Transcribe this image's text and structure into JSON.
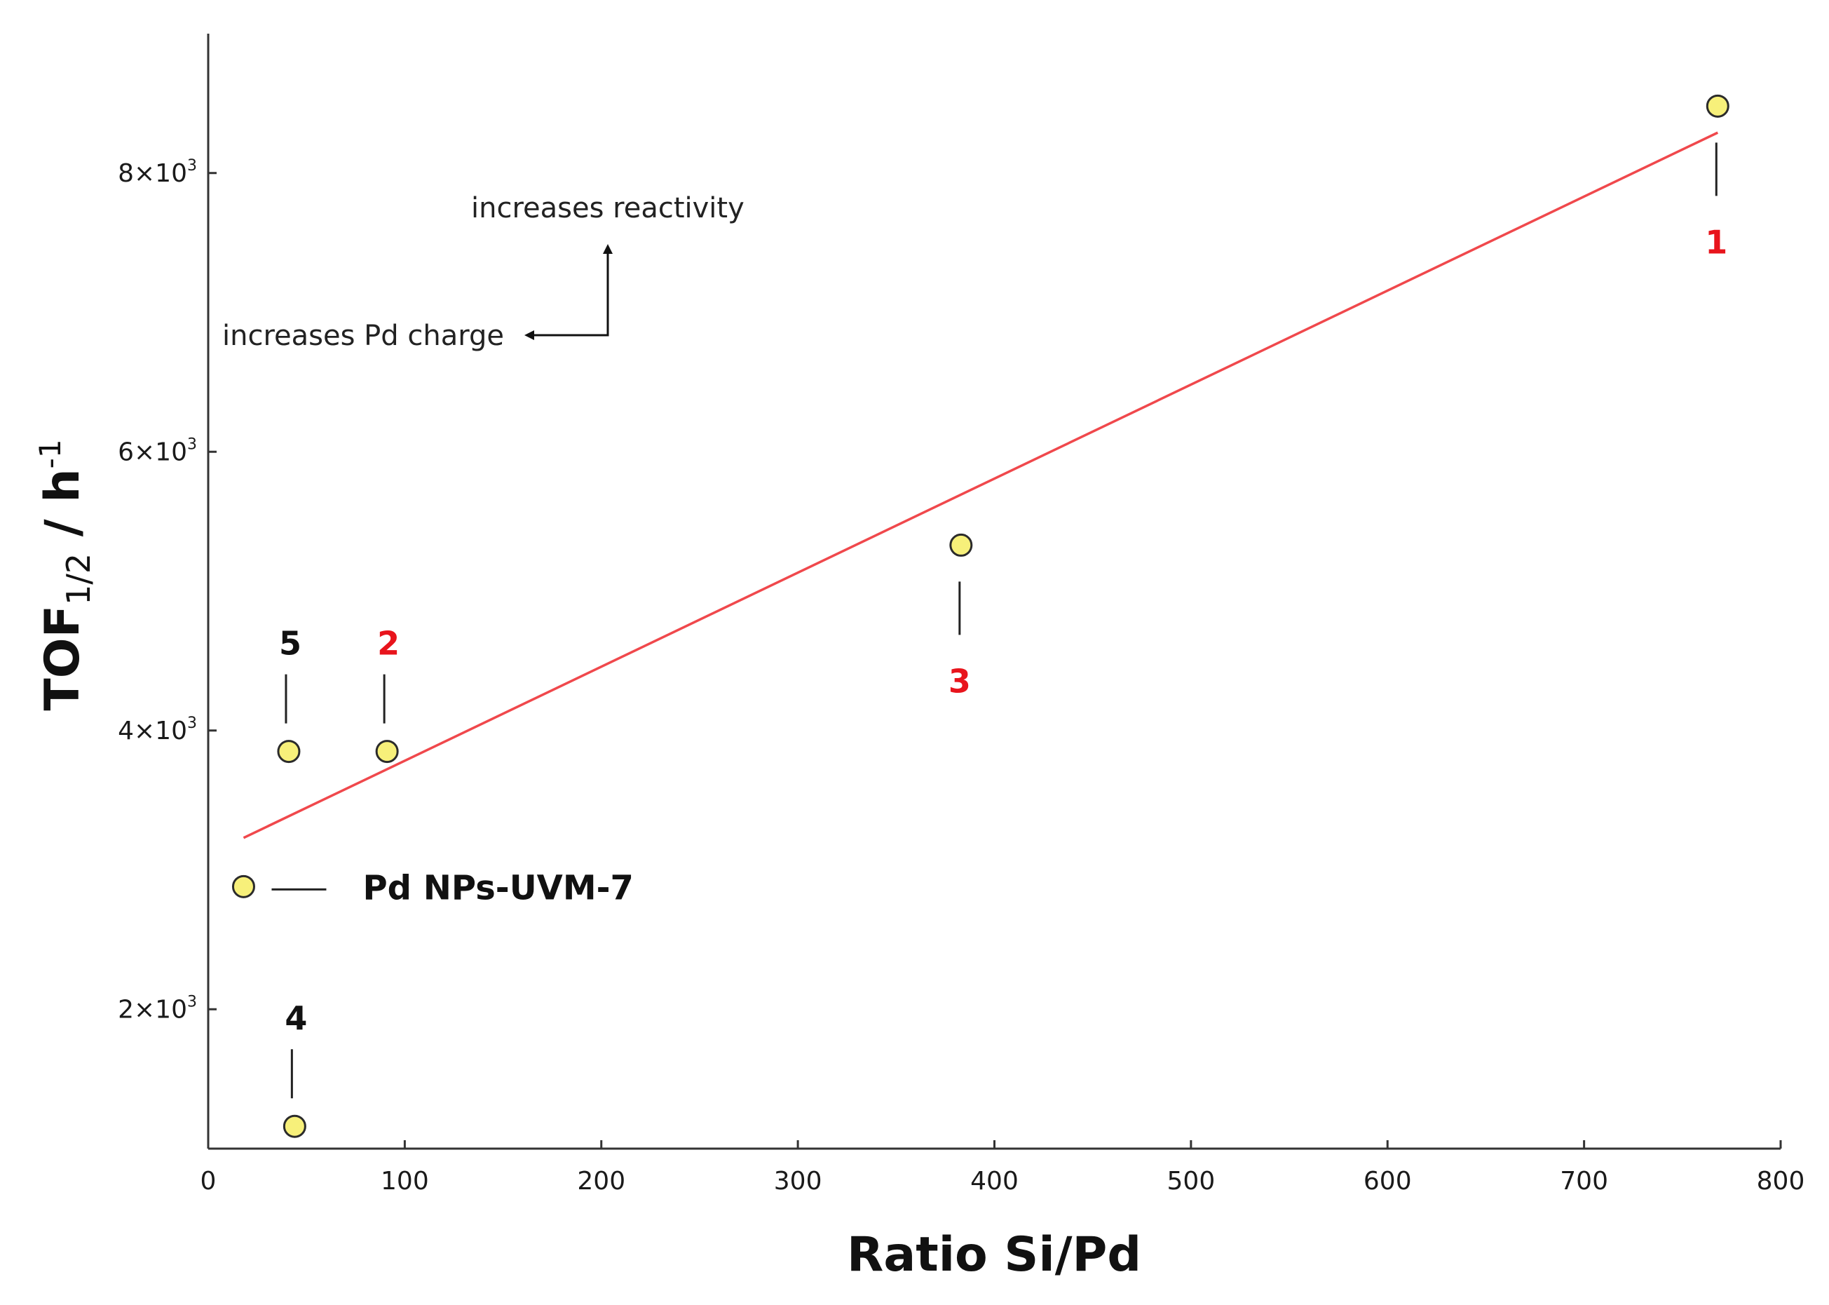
{
  "chart_data": {
    "type": "scatter",
    "xlabel": "Ratio Si/Pd",
    "ylabel": {
      "main": "TOF",
      "sub": "1/2",
      "unit": " / h",
      "sup": "-1"
    },
    "xlim": [
      0,
      800
    ],
    "ylim": [
      1000,
      9000
    ],
    "x_ticks": [
      {
        "value": 0,
        "label": "0"
      },
      {
        "value": 100,
        "label": "100"
      },
      {
        "value": 200,
        "label": "200"
      },
      {
        "value": 300,
        "label": "300"
      },
      {
        "value": 400,
        "label": "400"
      },
      {
        "value": 500,
        "label": "500"
      },
      {
        "value": 600,
        "label": "600"
      },
      {
        "value": 700,
        "label": "700"
      },
      {
        "value": 800,
        "label": "800"
      }
    ],
    "y_ticks": [
      {
        "value": 2000,
        "mant": "2×10",
        "exp": "3"
      },
      {
        "value": 4000,
        "mant": "4×10",
        "exp": "3"
      },
      {
        "value": 6000,
        "mant": "6×10",
        "exp": "3"
      },
      {
        "value": 8000,
        "mant": "8×10",
        "exp": "3"
      }
    ],
    "points": [
      {
        "id": "1",
        "label": "1",
        "x": 768,
        "y": 8480,
        "label_color": "#e8141c",
        "label_pos": "below"
      },
      {
        "id": "2",
        "label": "2",
        "x": 91,
        "y": 3850,
        "label_color": "#e8141c",
        "label_pos": "above"
      },
      {
        "id": "3",
        "label": "3",
        "x": 383,
        "y": 5330,
        "label_color": "#e8141c",
        "label_pos": "below"
      },
      {
        "id": "4",
        "label": "4",
        "x": 44,
        "y": 1160,
        "label_color": "#111111",
        "label_pos": "above"
      },
      {
        "id": "5",
        "label": "5",
        "x": 41,
        "y": 3850,
        "label_color": "#111111",
        "label_pos": "above"
      },
      {
        "id": "np",
        "label": "Pd NPs-UVM-7",
        "x": 18,
        "y": 2880,
        "label_color": "#111111",
        "label_pos": "right"
      }
    ],
    "fit_line": {
      "x1": 18,
      "y1": 3230,
      "x2": 768,
      "y2": 8290,
      "color": "#f0484c"
    },
    "annotations": {
      "reactivity": "increases reactivity",
      "charge": "increases Pd charge"
    },
    "marker_fill": "#f7f07a",
    "marker_stroke": "#2b2b2b",
    "grid": false,
    "legend": "none"
  }
}
